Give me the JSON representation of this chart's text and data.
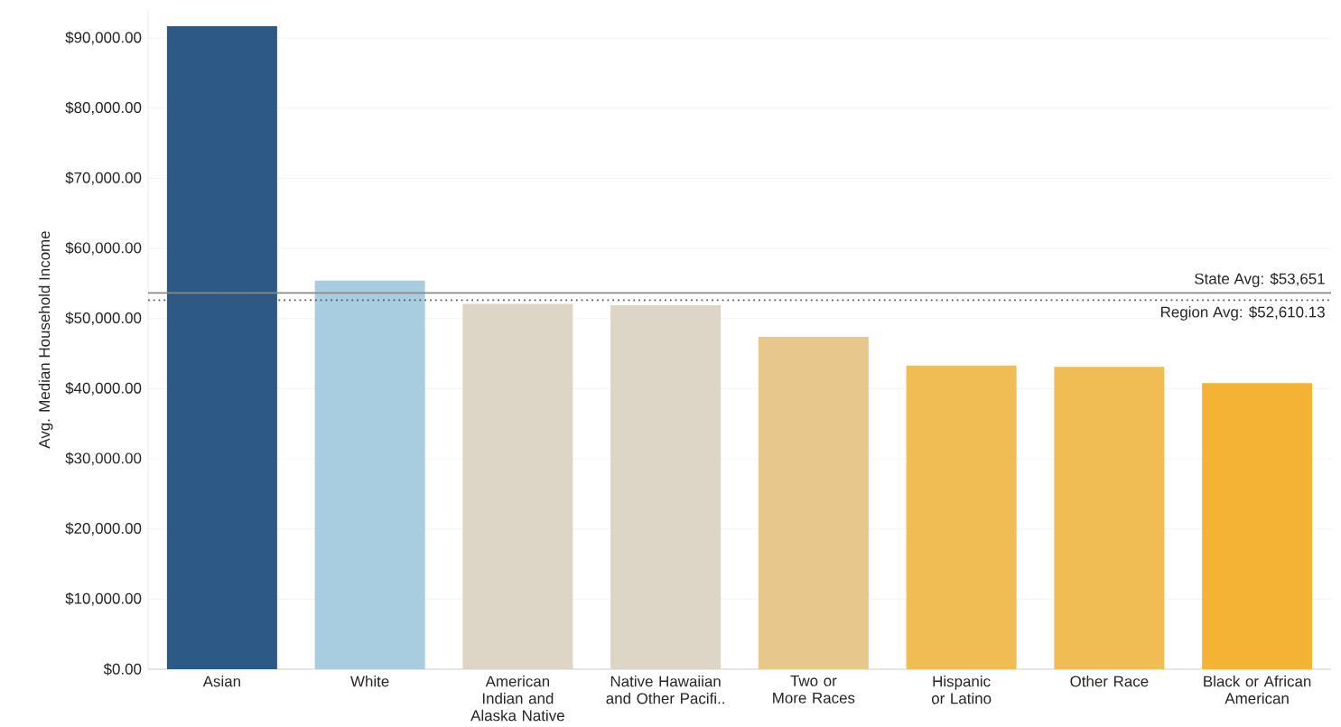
{
  "chart_data": {
    "type": "bar",
    "ylabel": "Avg. Median Household Income",
    "categories": [
      "Asian",
      "White",
      "American Indian and Alaska Native",
      "Native Hawaiian and Other Pacifi..",
      "Two or More Races",
      "Hispanic or Latino",
      "Other Race",
      "Black or African American"
    ],
    "values": [
      91700,
      55400,
      52100,
      51900,
      47400,
      43300,
      43100,
      40800
    ],
    "colors": [
      "#2c5985",
      "#a9cde0",
      "#ddd5c5",
      "#ddd5c5",
      "#e8c78c",
      "#f0bd55",
      "#f0bd55",
      "#f5b335"
    ],
    "ylim": [
      0,
      94000
    ],
    "yticks": [
      {
        "value": 0,
        "label": "$0.00"
      },
      {
        "value": 10000,
        "label": "$10,000.00"
      },
      {
        "value": 20000,
        "label": "$20,000.00"
      },
      {
        "value": 30000,
        "label": "$30,000.00"
      },
      {
        "value": 40000,
        "label": "$40,000.00"
      },
      {
        "value": 50000,
        "label": "$50,000.00"
      },
      {
        "value": 60000,
        "label": "$60,000.00"
      },
      {
        "value": 70000,
        "label": "$70,000.00"
      },
      {
        "value": 80000,
        "label": "$80,000.00"
      },
      {
        "value": 90000,
        "label": "$90,000.00"
      }
    ],
    "ref_lines": [
      {
        "axis": "y",
        "value": 53651,
        "label": "State Avg: $53,651",
        "color": "#8a8a8a",
        "line_style": "solid"
      },
      {
        "axis": "y",
        "value": 52610.13,
        "label": "Region Avg: $52,610.13",
        "color": "#555555",
        "line_style": "dotted"
      }
    ],
    "grid": "y"
  }
}
